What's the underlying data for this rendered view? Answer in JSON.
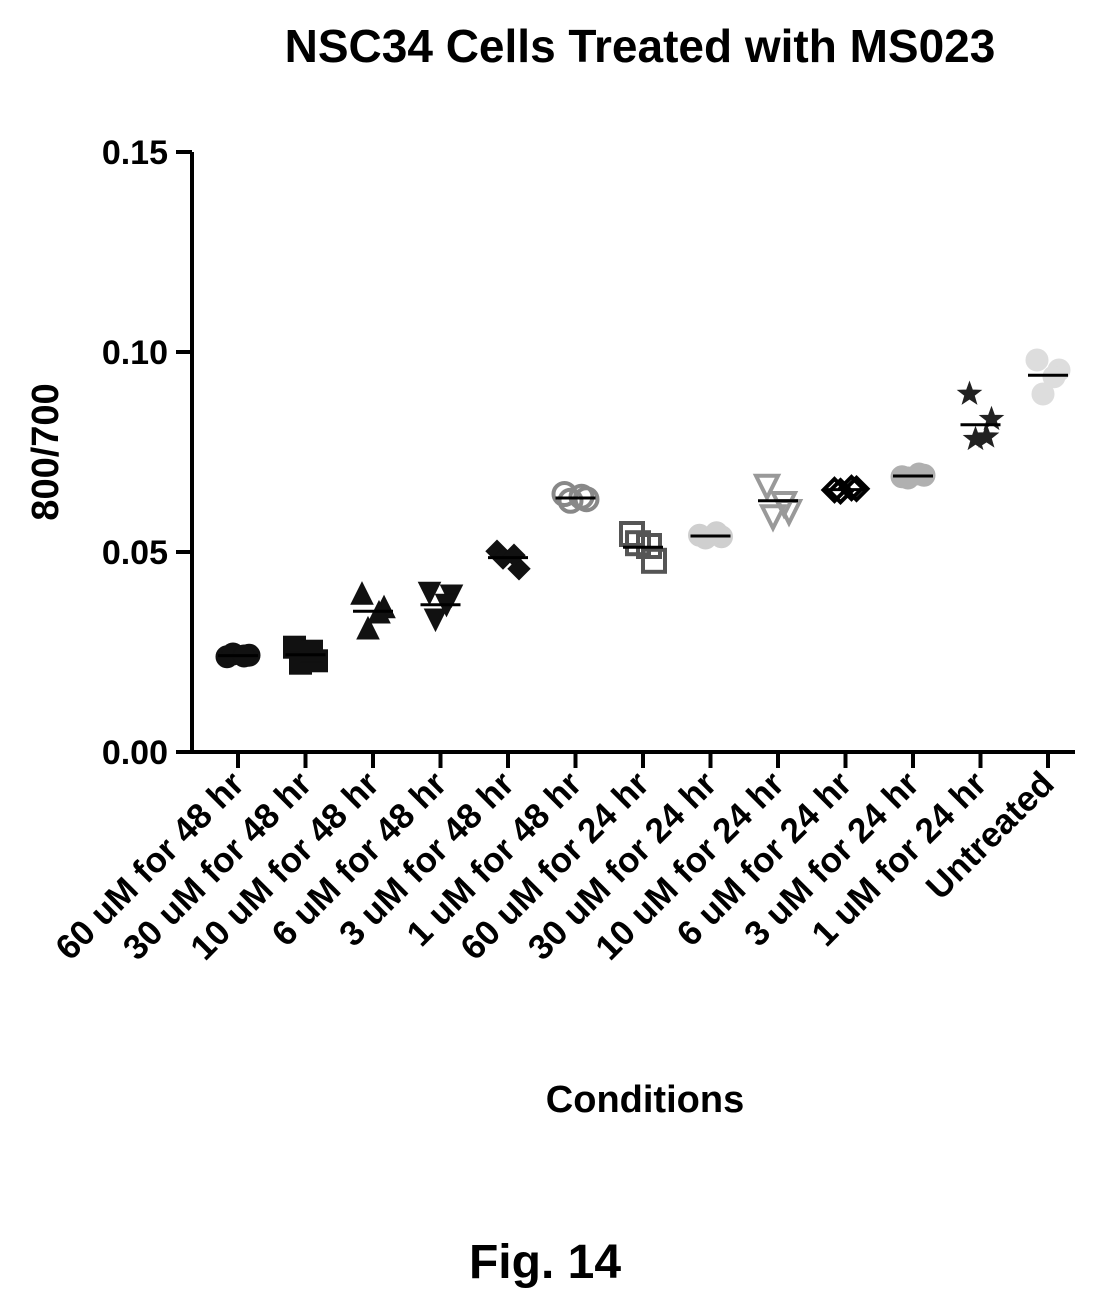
{
  "figure_label": "Fig. 14",
  "chart_data": {
    "type": "scatter",
    "title": "NSC34 Cells Treated with MS023",
    "xlabel": "Conditions",
    "ylabel": "800/700",
    "ylim": [
      0,
      0.15
    ],
    "yticks": [
      "0.00",
      "0.05",
      "0.10",
      "0.15"
    ],
    "grid": false,
    "categories": [
      "60 uM for 48 hr",
      "30 uM for 48 hr",
      "10 uM for 48 hr",
      "6 uM for 48 hr",
      "3 uM for 48 hr",
      "1 uM for 48 hr",
      "60 uM for 24 hr",
      "30 uM for 24 hr",
      "10 uM for 24 hr",
      "6 uM for 24 hr",
      "3 uM for 24 hr",
      "1 uM for 24 hr",
      "Untreated"
    ],
    "series": [
      {
        "marker": "circle",
        "color": "#111111",
        "points": [
          0.0238,
          0.0242,
          0.0245,
          0.024
        ],
        "mean": 0.0241
      },
      {
        "marker": "square",
        "color": "#111111",
        "points": [
          0.0262,
          0.0228,
          0.0222,
          0.0252
        ],
        "mean": 0.0243
      },
      {
        "marker": "triangle-up",
        "color": "#111111",
        "points": [
          0.0392,
          0.0358,
          0.0305,
          0.0345
        ],
        "mean": 0.0352
      },
      {
        "marker": "triangle-down",
        "color": "#111111",
        "points": [
          0.0402,
          0.0395,
          0.0335,
          0.0372
        ],
        "mean": 0.0368
      },
      {
        "marker": "diamond",
        "color": "#111111",
        "points": [
          0.0502,
          0.0458,
          0.0485,
          0.0492
        ],
        "mean": 0.0486
      },
      {
        "marker": "circle-open",
        "color": "#888888",
        "points": [
          0.0645,
          0.0632,
          0.0628,
          0.0638
        ],
        "mean": 0.0635
      },
      {
        "marker": "square-open",
        "color": "#555555",
        "points": [
          0.0545,
          0.0478,
          0.0522,
          0.0515
        ],
        "mean": 0.0512
      },
      {
        "marker": "circle",
        "color": "#cfcfcf",
        "points": [
          0.0542,
          0.0538,
          0.0535,
          0.0548
        ],
        "mean": 0.054
      },
      {
        "marker": "triangle-down-open",
        "color": "#999999",
        "points": [
          0.0668,
          0.0605,
          0.0592,
          0.0625
        ],
        "mean": 0.0628
      },
      {
        "marker": "diamond-open",
        "color": "#000000",
        "points": [
          0.0655,
          0.0658,
          0.0652,
          0.066
        ],
        "mean": 0.0656
      },
      {
        "marker": "circle",
        "color": "#b0b0b0",
        "points": [
          0.0688,
          0.0692,
          0.0685,
          0.0695
        ],
        "mean": 0.069
      },
      {
        "marker": "star",
        "color": "#222222",
        "points": [
          0.0895,
          0.0832,
          0.0782,
          0.0788
        ],
        "mean": 0.0818
      },
      {
        "marker": "circle",
        "color": "#dddddd",
        "points": [
          0.098,
          0.0955,
          0.0895,
          0.0938
        ],
        "mean": 0.0942
      }
    ]
  }
}
